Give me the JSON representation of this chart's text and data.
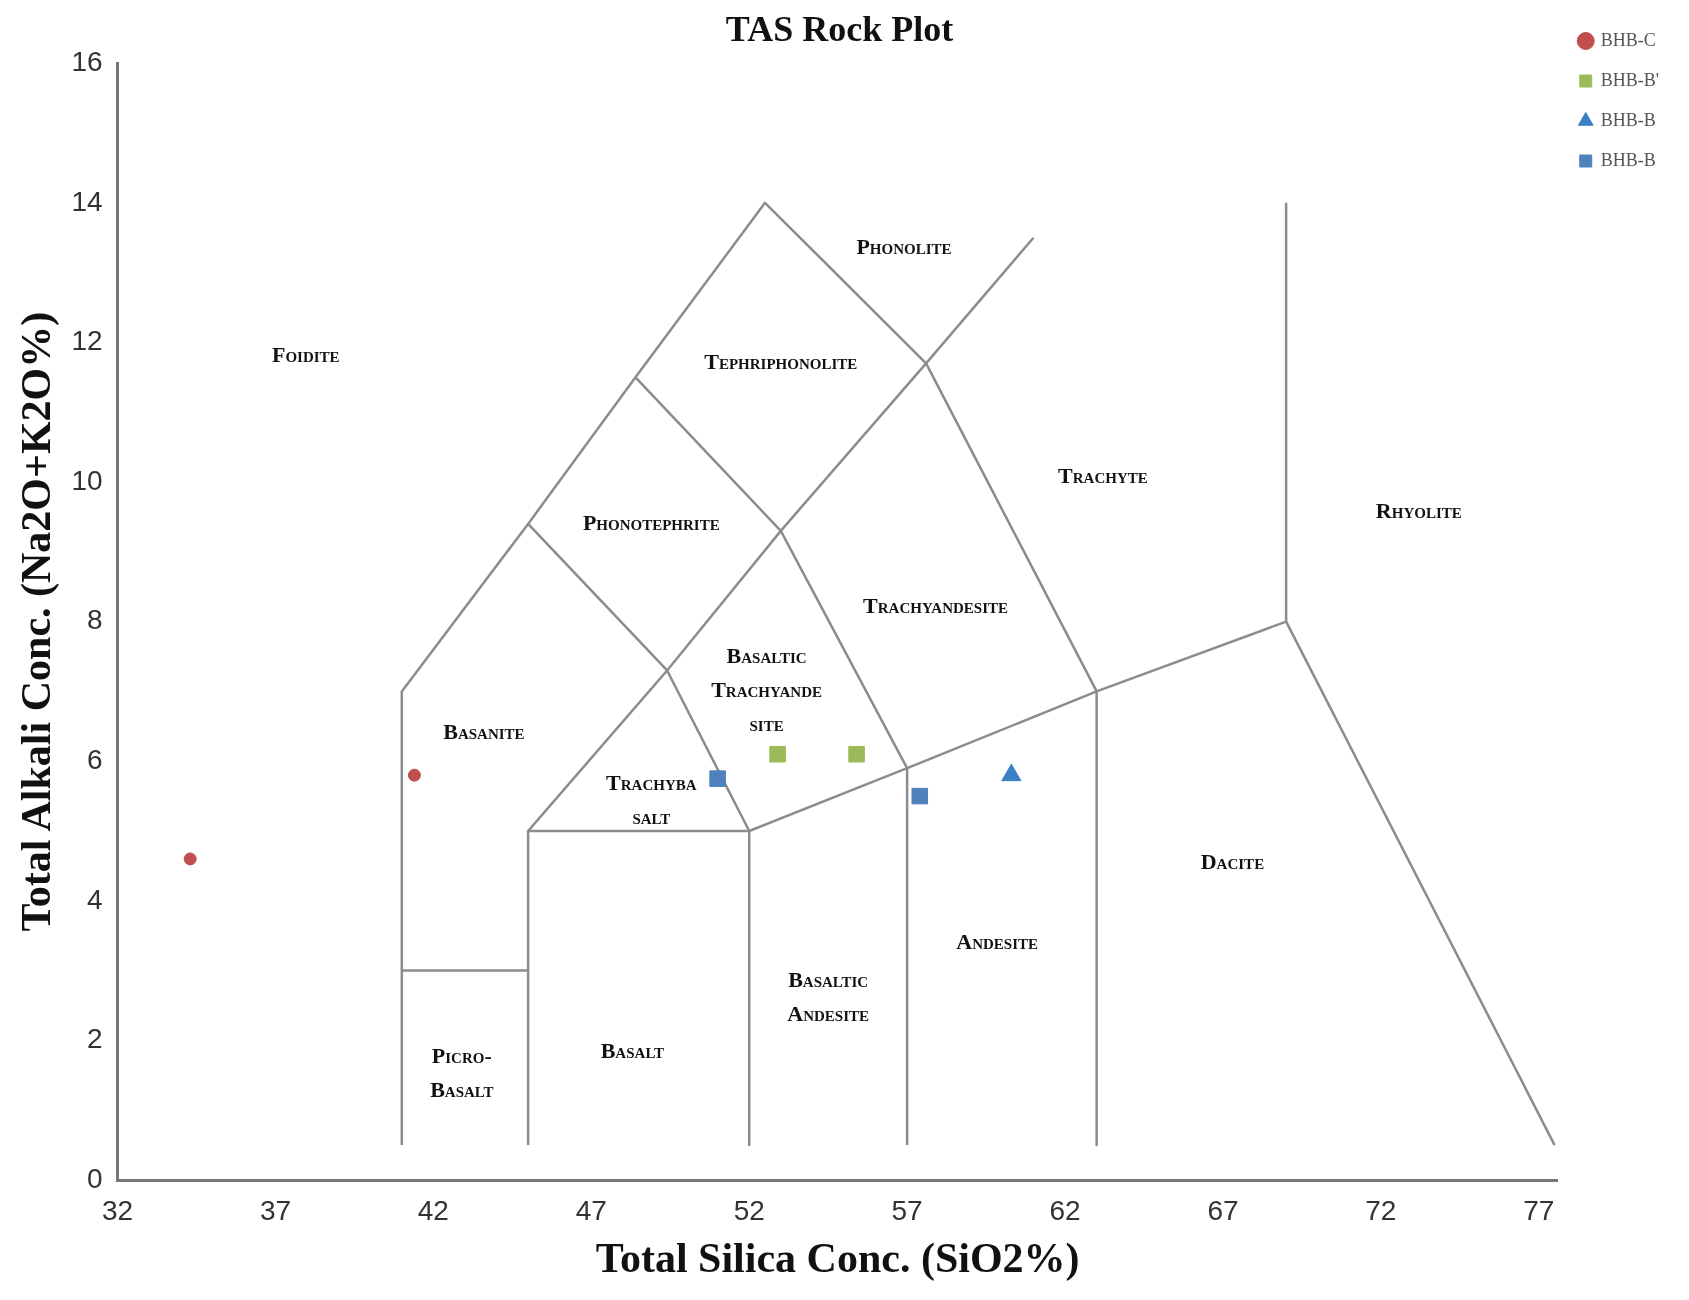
{
  "chart_data": {
    "type": "scatter",
    "title": "TAS Rock Plot",
    "xlabel": "Total Silica Conc. (SiO2%)",
    "ylabel": "Total Alkali Conc. (Na2O+K2O%)",
    "xlim": [
      32,
      77.6
    ],
    "xticks": [
      32,
      37,
      42,
      47,
      52,
      57,
      62,
      67,
      72,
      77
    ],
    "ylim": [
      0,
      16
    ],
    "yticks": [
      0,
      2,
      4,
      6,
      8,
      10,
      12,
      14,
      16
    ],
    "grid": false,
    "legend": "top right",
    "series": [
      {
        "name": "BHB-C",
        "color": "#c0504d",
        "marker": "circle",
        "x": [
          34.3,
          41.4
        ],
        "values": [
          4.6,
          5.8
        ]
      },
      {
        "name": "BHB-B'",
        "color": "#9bbb59",
        "marker": "square",
        "x": [
          52.9,
          55.4
        ],
        "values": [
          6.1,
          6.1
        ]
      },
      {
        "name": "BHB-B",
        "color": "#3b7fc4",
        "marker": "triangle",
        "x": [
          60.3
        ],
        "values": [
          5.8
        ]
      },
      {
        "name": "BHB-B",
        "color": "#4f81bd",
        "marker": "square",
        "x": [
          51.0,
          57.4
        ],
        "values": [
          5.75,
          5.5
        ]
      },
      {
        "type": "line",
        "color": "#8c8c8c",
        "marker": "none",
        "x": [
          41,
          41,
          45,
          48.4,
          52.5,
          57.6,
          63,
          63
        ],
        "values": [
          0.5,
          7,
          9.4,
          11.5,
          14,
          11.7,
          7,
          0.5
        ]
      },
      {
        "type": "line",
        "color": "#8c8c8c",
        "marker": "none",
        "x": [
          41,
          45
        ],
        "values": [
          3,
          3
        ]
      },
      {
        "type": "line",
        "color": "#8c8c8c",
        "marker": "none",
        "x": [
          45,
          45,
          52,
          52
        ],
        "values": [
          0.5,
          5,
          5,
          0.5
        ]
      },
      {
        "type": "line",
        "color": "#8c8c8c",
        "marker": "none",
        "x": [
          52,
          57,
          63,
          69,
          69
        ],
        "values": [
          5,
          5.9,
          7,
          8,
          14
        ]
      },
      {
        "type": "line",
        "color": "#8c8c8c",
        "marker": "none",
        "x": [
          57,
          57
        ],
        "values": [
          0.5,
          5.9
        ]
      },
      {
        "type": "line",
        "color": "#8c8c8c",
        "marker": "none",
        "x": [
          69,
          77.5
        ],
        "values": [
          8,
          0.5
        ]
      },
      {
        "type": "line",
        "color": "#8c8c8c",
        "marker": "none",
        "x": [
          45,
          49.4,
          53,
          57.6,
          61
        ],
        "values": [
          5,
          7.3,
          9.3,
          11.7,
          13.5
        ]
      },
      {
        "type": "line",
        "color": "#8c8c8c",
        "marker": "none",
        "x": [
          45,
          49.4,
          52
        ],
        "values": [
          9.4,
          7.3,
          5
        ]
      },
      {
        "type": "line",
        "color": "#8c8c8c",
        "marker": "none",
        "x": [
          48.4,
          53,
          57
        ],
        "values": [
          11.5,
          9.3,
          5.9
        ]
      }
    ],
    "annotations": [
      "Foidite",
      "Phonolite",
      "Tephriphonolite",
      "Phonotephrite",
      "Trachyte",
      "Rhyolite",
      "Trachyandesite",
      "Basaltic\nTrachyande\nsite",
      "Basanite",
      "Trachyba\nsalt",
      "Dacite",
      "Andesite",
      "Basaltic\nAndesite",
      "Picro-\nBasalt",
      "Basalt"
    ]
  }
}
